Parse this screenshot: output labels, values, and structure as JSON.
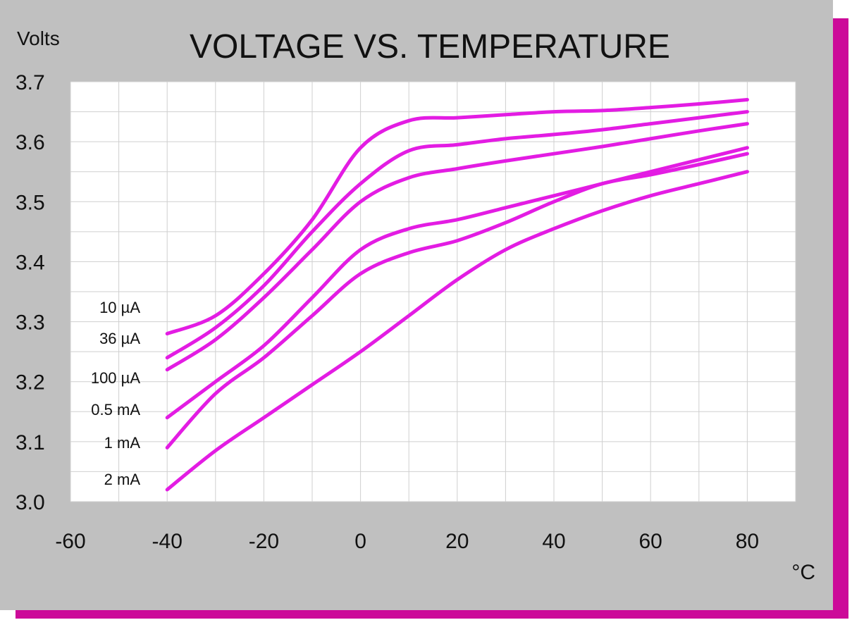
{
  "chart_data": {
    "type": "line",
    "title": "VOLTAGE VS. TEMPERATURE",
    "ylabel": "Volts",
    "xlabel": "°C",
    "xlim": [
      -60,
      90
    ],
    "ylim": [
      3.0,
      3.7
    ],
    "grid": true,
    "x_ticks": [
      -60,
      -40,
      -20,
      0,
      20,
      40,
      60,
      80
    ],
    "x_tick_labels": [
      "-60",
      "-40",
      "-20",
      "0",
      "20",
      "40",
      "60",
      "80"
    ],
    "y_ticks": [
      3.0,
      3.1,
      3.2,
      3.3,
      3.4,
      3.5,
      3.6,
      3.7
    ],
    "y_tick_labels": [
      "3.0",
      "3.1",
      "3.2",
      "3.3",
      "3.4",
      "3.5",
      "3.6",
      "3.7"
    ],
    "line_color": "#e31ce3",
    "series": [
      {
        "name": "10 µA",
        "x": [
          -40,
          -30,
          -20,
          -10,
          0,
          10,
          20,
          30,
          40,
          50,
          60,
          70,
          80
        ],
        "y": [
          3.28,
          3.31,
          3.38,
          3.47,
          3.59,
          3.635,
          3.64,
          3.645,
          3.65,
          3.652,
          3.657,
          3.663,
          3.67
        ]
      },
      {
        "name": "36 µA",
        "x": [
          -40,
          -30,
          -20,
          -10,
          0,
          10,
          20,
          30,
          40,
          50,
          60,
          70,
          80
        ],
        "y": [
          3.24,
          3.29,
          3.36,
          3.45,
          3.53,
          3.585,
          3.595,
          3.605,
          3.612,
          3.62,
          3.63,
          3.64,
          3.65
        ]
      },
      {
        "name": "100 µA",
        "x": [
          -40,
          -30,
          -20,
          -10,
          0,
          10,
          20,
          30,
          40,
          50,
          60,
          70,
          80
        ],
        "y": [
          3.22,
          3.27,
          3.34,
          3.42,
          3.5,
          3.54,
          3.555,
          3.568,
          3.58,
          3.592,
          3.605,
          3.618,
          3.63
        ]
      },
      {
        "name": "0.5 mA",
        "x": [
          -40,
          -30,
          -20,
          -10,
          0,
          10,
          20,
          30,
          40,
          50,
          60,
          70,
          80
        ],
        "y": [
          3.14,
          3.2,
          3.26,
          3.34,
          3.42,
          3.455,
          3.47,
          3.49,
          3.51,
          3.53,
          3.55,
          3.57,
          3.59
        ]
      },
      {
        "name": "1 mA",
        "x": [
          -40,
          -30,
          -20,
          -10,
          0,
          10,
          20,
          30,
          40,
          50,
          60,
          70,
          80
        ],
        "y": [
          3.09,
          3.18,
          3.24,
          3.31,
          3.38,
          3.415,
          3.435,
          3.465,
          3.5,
          3.53,
          3.545,
          3.562,
          3.58
        ]
      },
      {
        "name": "2 mA",
        "x": [
          -40,
          -30,
          -20,
          -10,
          0,
          10,
          20,
          30,
          40,
          50,
          60,
          70,
          80
        ],
        "y": [
          3.02,
          3.085,
          3.14,
          3.195,
          3.25,
          3.31,
          3.37,
          3.42,
          3.455,
          3.485,
          3.51,
          3.53,
          3.55
        ]
      }
    ]
  }
}
